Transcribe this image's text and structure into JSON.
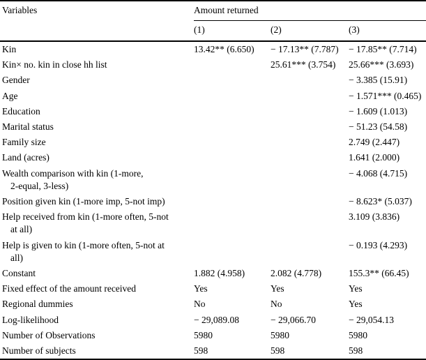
{
  "table": {
    "col1_header": "Variables",
    "span_header": "Amount returned",
    "col_headers": [
      "(1)",
      "(2)",
      "(3)"
    ],
    "rows": [
      {
        "label": "Kin",
        "c1": "13.42** (6.650)",
        "c2": "− 17.13** (7.787)",
        "c3": "− 17.85** (7.714)"
      },
      {
        "label": "Kin× no. kin in close hh list",
        "c1": "",
        "c2": "25.61*** (3.754)",
        "c3": "25.66*** (3.693)"
      },
      {
        "label": "Gender",
        "c1": "",
        "c2": "",
        "c3": "− 3.385 (15.91)"
      },
      {
        "label": "Age",
        "c1": "",
        "c2": "",
        "c3": "− 1.571*** (0.465)"
      },
      {
        "label": "Education",
        "c1": "",
        "c2": "",
        "c3": "− 1.609 (1.013)"
      },
      {
        "label": "Marital status",
        "c1": "",
        "c2": "",
        "c3": "− 51.23 (54.58)"
      },
      {
        "label": "Family size",
        "c1": "",
        "c2": "",
        "c3": "2.749 (2.447)"
      },
      {
        "label": "Land (acres)",
        "c1": "",
        "c2": "",
        "c3": "1.641 (2.000)"
      },
      {
        "label": "Wealth comparison with kin (1-more,\n2-equal, 3-less)",
        "c1": "",
        "c2": "",
        "c3": "− 4.068 (4.715)"
      },
      {
        "label": "Position given kin (1-more imp, 5-not imp)",
        "c1": "",
        "c2": "",
        "c3": "− 8.623* (5.037)"
      },
      {
        "label": "Help received from kin (1-more often, 5-not\nat all)",
        "c1": "",
        "c2": "",
        "c3": "3.109 (3.836)"
      },
      {
        "label": "Help is given to kin (1-more often, 5-not at\nall)",
        "c1": "",
        "c2": "",
        "c3": "− 0.193 (4.293)"
      },
      {
        "label": "Constant",
        "c1": "1.882 (4.958)",
        "c2": "2.082 (4.778)",
        "c3": "155.3** (66.45)"
      },
      {
        "label": "Fixed effect of the amount received",
        "c1": "Yes",
        "c2": "Yes",
        "c3": "Yes"
      },
      {
        "label": "Regional dummies",
        "c1": "No",
        "c2": "No",
        "c3": "Yes"
      },
      {
        "label": "Log-likelihood",
        "c1": "− 29,089.08",
        "c2": "− 29,066.70",
        "c3": "− 29,054.13"
      },
      {
        "label": "Number of Observations",
        "c1": "5980",
        "c2": "5980",
        "c3": "5980"
      },
      {
        "label": "Number of subjects",
        "c1": "598",
        "c2": "598",
        "c3": "598"
      }
    ]
  }
}
